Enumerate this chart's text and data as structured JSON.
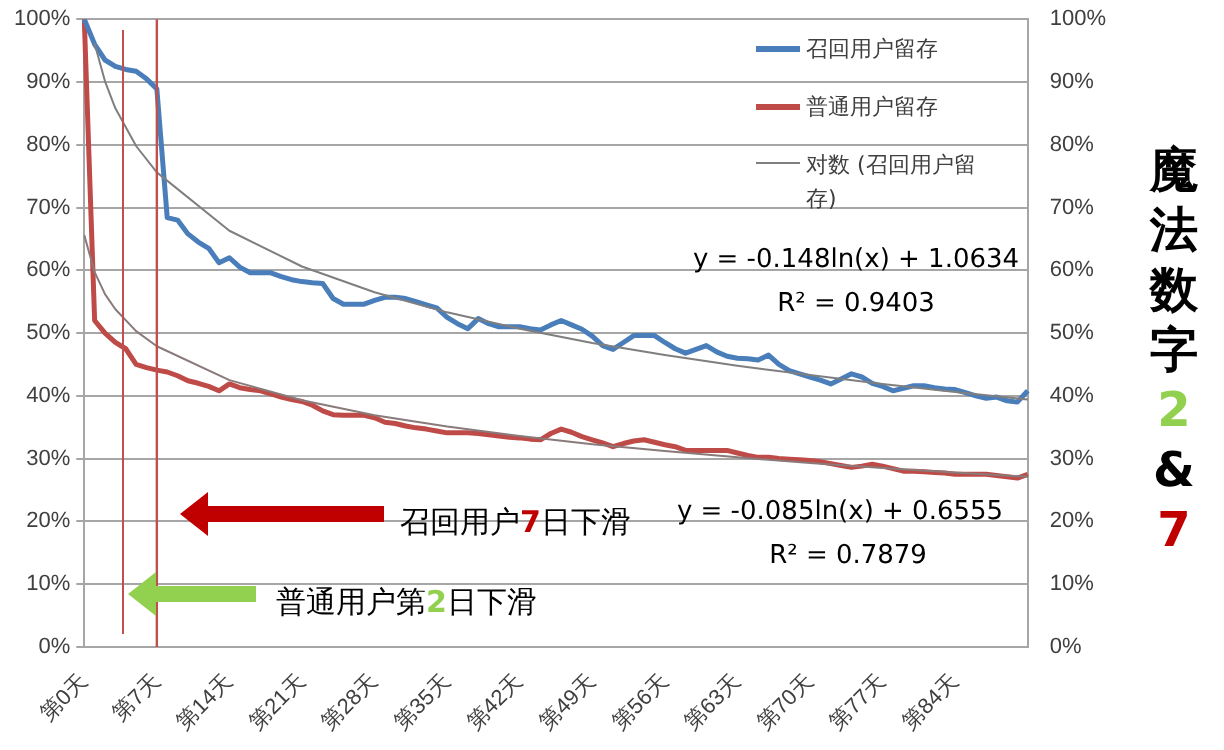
{
  "chart_data": {
    "type": "line",
    "title": "魔法数字2&7",
    "categories": [
      "第0天",
      null,
      null,
      null,
      null,
      null,
      null,
      "第7天",
      null,
      null,
      null,
      null,
      null,
      null,
      "第14天",
      null,
      null,
      null,
      null,
      null,
      null,
      "第21天",
      null,
      null,
      null,
      null,
      null,
      null,
      "第28天",
      null,
      null,
      null,
      null,
      null,
      null,
      "第35天",
      null,
      null,
      null,
      null,
      null,
      null,
      "第42天",
      null,
      null,
      null,
      null,
      null,
      null,
      "第49天",
      null,
      null,
      null,
      null,
      null,
      null,
      "第56天",
      null,
      null,
      null,
      null,
      null,
      null,
      "第63天",
      null,
      null,
      null,
      null,
      null,
      null,
      "第70天",
      null,
      null,
      null,
      null,
      null,
      null,
      "第77天",
      null,
      null,
      null,
      null,
      null,
      null,
      "第84天",
      null,
      null,
      null,
      null,
      null,
      null,
      null
    ],
    "series": [
      {
        "name": "召回用户留存",
        "color": "#4a7ebb",
        "values": [
          100,
          96,
          93.5,
          92.5,
          92,
          91.7,
          90.5,
          88.9,
          68.4,
          68,
          65.8,
          64.5,
          63.5,
          61.2,
          62,
          60.5,
          59.6,
          59.6,
          59.6,
          59,
          58.5,
          58.2,
          58,
          57.9,
          55.5,
          54.6,
          54.6,
          54.6,
          55.2,
          55.7,
          55.7,
          55.5,
          55,
          54.5,
          54,
          52.5,
          51.5,
          50.7,
          52.3,
          51.5,
          51,
          51,
          51,
          50.7,
          50.5,
          51.3,
          52,
          51.3,
          50.6,
          49.5,
          48,
          47.4,
          48.5,
          49.6,
          49.6,
          49.6,
          48.5,
          47.5,
          46.8,
          47.4,
          48,
          47,
          46.3,
          46,
          45.9,
          45.7,
          46.5,
          45,
          44,
          43.5,
          43,
          42.5,
          41.9,
          42.7,
          43.5,
          43,
          42,
          41.5,
          40.8,
          41.2,
          41.6,
          41.6,
          41.3,
          41.1,
          41,
          40.5,
          40,
          39.6,
          39.8,
          39.2,
          39,
          40.8
        ]
      },
      {
        "name": "普通用户留存",
        "color": "#be4b48",
        "values": [
          100,
          52,
          50,
          48.5,
          47.5,
          45,
          44.5,
          44.1,
          43.8,
          43.2,
          42.4,
          42,
          41.5,
          40.8,
          41.9,
          41.3,
          41,
          40.8,
          40.3,
          39.8,
          39.4,
          39.1,
          38.5,
          37.6,
          37,
          36.9,
          36.9,
          36.9,
          36.5,
          35.8,
          35.6,
          35.2,
          34.9,
          34.7,
          34.4,
          34.1,
          34.1,
          34.1,
          34,
          33.8,
          33.6,
          33.4,
          33.3,
          33.1,
          33,
          34,
          34.7,
          34.2,
          33.5,
          33,
          32.5,
          31.9,
          32.4,
          32.8,
          33,
          32.6,
          32.2,
          31.9,
          31.3,
          31.3,
          31.3,
          31.3,
          31.3,
          30.9,
          30.5,
          30.2,
          30.2,
          30,
          29.9,
          29.8,
          29.7,
          29.5,
          29.2,
          28.9,
          28.6,
          28.8,
          29.1,
          28.8,
          28.4,
          28,
          28,
          27.9,
          27.8,
          27.7,
          27.5,
          27.5,
          27.5,
          27.5,
          27.3,
          27.1,
          26.9,
          27.5
        ]
      },
      {
        "name": "对数 (召回用户留存)",
        "color": "#7f7f7f",
        "values": [
          null,
          96.1,
          90.1,
          85.8,
          null,
          79.8,
          null,
          75.6,
          null,
          null,
          null,
          null,
          null,
          null,
          66.3,
          null,
          null,
          null,
          null,
          null,
          null,
          60.6,
          null,
          null,
          null,
          null,
          null,
          null,
          56.5,
          null,
          null,
          null,
          null,
          null,
          null,
          53.3,
          null,
          null,
          null,
          null,
          null,
          null,
          50.7,
          null,
          null,
          null,
          null,
          null,
          null,
          48.4,
          null,
          null,
          null,
          null,
          null,
          null,
          46.5,
          null,
          null,
          null,
          null,
          null,
          null,
          44.8,
          null,
          null,
          null,
          null,
          null,
          null,
          43.3,
          null,
          null,
          null,
          null,
          null,
          null,
          41.9,
          null,
          null,
          null,
          null,
          null,
          null,
          40.6,
          null,
          null,
          null,
          null,
          null,
          null,
          39.4
        ]
      },
      {
        "color": "#8a7a7a",
        "values": [
          65.6,
          59.7,
          56.2,
          53.8,
          null,
          50.3,
          null,
          47.9,
          null,
          null,
          null,
          null,
          null,
          null,
          42.5,
          null,
          null,
          null,
          null,
          null,
          null,
          39.3,
          null,
          null,
          null,
          null,
          null,
          null,
          36.9,
          null,
          null,
          null,
          null,
          null,
          null,
          35.1,
          null,
          null,
          null,
          null,
          null,
          null,
          33.6,
          null,
          null,
          null,
          null,
          null,
          null,
          32.3,
          null,
          null,
          null,
          null,
          null,
          null,
          31.2,
          null,
          null,
          null,
          null,
          null,
          null,
          30.2,
          null,
          null,
          null,
          null,
          null,
          null,
          29.3,
          null,
          null,
          null,
          null,
          null,
          null,
          28.5,
          null,
          null,
          null,
          null,
          null,
          null,
          27.8,
          null,
          null,
          null,
          null,
          null,
          null,
          27.1
        ]
      }
    ],
    "ylim": [
      0,
      100
    ],
    "yticks": [
      {
        "value": 0,
        "label": "0%"
      },
      {
        "value": 10,
        "label": "10%"
      },
      {
        "value": 20,
        "label": "20%"
      },
      {
        "value": 30,
        "label": "30%"
      },
      {
        "value": 40,
        "label": "40%"
      },
      {
        "value": 50,
        "label": "50%"
      },
      {
        "value": 60,
        "label": "60%"
      },
      {
        "value": 70,
        "label": "70%"
      },
      {
        "value": 80,
        "label": "80%"
      },
      {
        "value": 90,
        "label": "90%"
      },
      {
        "value": 100,
        "label": "100%"
      }
    ],
    "y2lim": [
      0,
      100
    ],
    "y2ticks": [
      {
        "value": 0,
        "label": "0%"
      },
      {
        "value": 10,
        "label": "10%"
      },
      {
        "value": 20,
        "label": "20%"
      },
      {
        "value": 30,
        "label": "30%"
      },
      {
        "value": 40,
        "label": "40%"
      },
      {
        "value": 50,
        "label": "50%"
      },
      {
        "value": 60,
        "label": "60%"
      },
      {
        "value": 70,
        "label": "70%"
      },
      {
        "value": 80,
        "label": "80%"
      },
      {
        "value": 90,
        "label": "90%"
      },
      {
        "value": 100,
        "label": "100%"
      }
    ],
    "ref_lines": [
      {
        "axis": "x",
        "value": "第7天",
        "color": "#c0504d"
      }
    ],
    "annotations": [
      "y = -0.148ln(x) + 1.0634",
      "R² = 0.9403",
      "y = -0.085ln(x) + 0.6555",
      "R² = 0.7879",
      "召回用户7日下滑",
      "普通用户第2日下滑"
    ],
    "grid": "y",
    "legend": "top right",
    "marker": "none",
    "line_style": "solid"
  }
}
